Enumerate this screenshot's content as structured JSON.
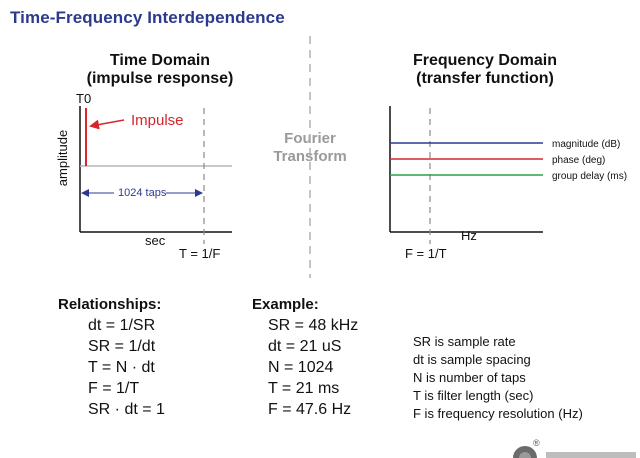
{
  "title": "Time-Frequency Interdependence",
  "time_domain": {
    "heading_line1": "Time Domain",
    "heading_line2": "(impulse response)",
    "t0_label": "T0",
    "impulse_label": "Impulse",
    "y_axis_label": "amplitude",
    "taps_label": "1024 taps",
    "x_axis_label": "sec",
    "period_label": "T = 1/F"
  },
  "fourier": {
    "line1": "Fourier",
    "line2": "Transform"
  },
  "frequency_domain": {
    "heading_line1": "Frequency Domain",
    "heading_line2": "(transfer function)",
    "x_axis_label": "Hz",
    "resolution_label": "F = 1/T",
    "traces": [
      {
        "label": "magnitude (dB)",
        "color": "#2b3a8f"
      },
      {
        "label": "phase (deg)",
        "color": "#d6262b"
      },
      {
        "label": "group delay (ms)",
        "color": "#2e9e48"
      }
    ]
  },
  "colors": {
    "title": "#2c3a8c",
    "impulse": "#d6262b",
    "taps_arrow": "#2b3a8f",
    "fourier_text": "#9a9a9a"
  },
  "relationships": {
    "heading": "Relationships:",
    "items": [
      "dt = 1/SR",
      "SR = 1/dt",
      "T = N · dt",
      "F = 1/T",
      "SR · dt = 1"
    ]
  },
  "example": {
    "heading": "Example:",
    "items": [
      "SR = 48 kHz",
      "dt = 21 uS",
      "N = 1024",
      "T = 21 ms",
      "F = 47.6 Hz"
    ]
  },
  "definitions": {
    "items": [
      "SR is sample rate",
      "dt is sample spacing",
      "N is number of taps",
      "T is filter length (sec)",
      "F is frequency resolution (Hz)"
    ]
  }
}
